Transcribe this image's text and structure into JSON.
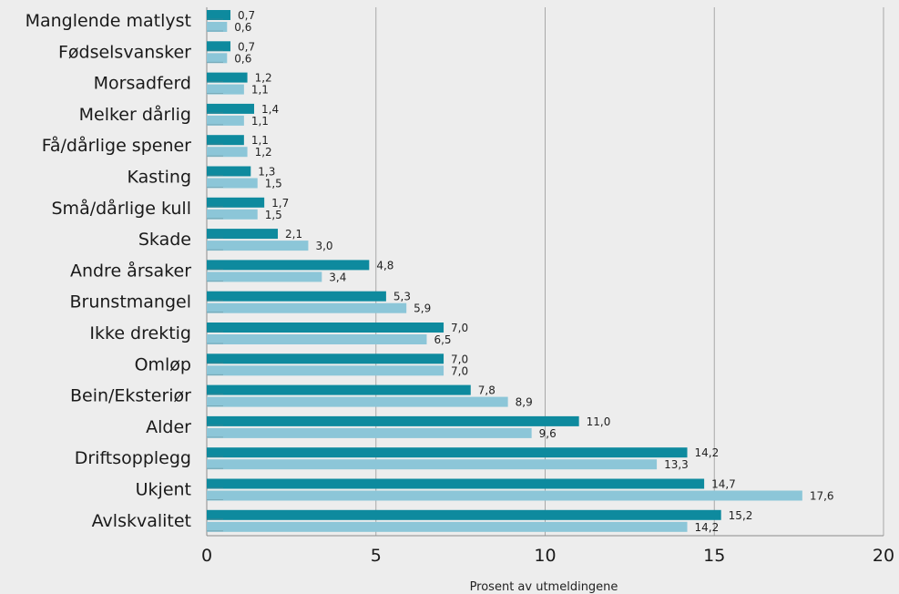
{
  "colors": {
    "background": "#ededed",
    "series_dark": "#0e8a9e",
    "series_light": "#8cc6d8",
    "gridline": "#a8a8a8"
  },
  "chart_data": {
    "type": "bar",
    "orientation": "horizontal",
    "title": "",
    "xlabel": "Prosent av utmeldingene",
    "ylabel": "",
    "xlim": [
      0,
      20
    ],
    "xticks": [
      "0",
      "5",
      "10",
      "15",
      "20"
    ],
    "grid": "vertical",
    "legend": "none",
    "categories": [
      "Manglende matlyst",
      "Fødselsvansker",
      "Morsadferd",
      "Melker dårlig",
      "Få/dårlige spener",
      "Kasting",
      "Små/dårlige kull",
      "Skade",
      "Andre årsaker",
      "Brunstmangel",
      "Ikke drektig",
      "Omløp",
      "Bein/Eksteriør",
      "Alder",
      "Driftsopplegg",
      "Ukjent",
      "Avlskvalitet"
    ],
    "series": [
      {
        "color": "#0e8a9e",
        "values": [
          0.7,
          0.7,
          1.2,
          1.4,
          1.1,
          1.3,
          1.7,
          2.1,
          4.8,
          5.3,
          7.0,
          7.0,
          7.8,
          11.0,
          14.2,
          14.7,
          15.2
        ],
        "labels": [
          "0,7",
          "0,7",
          "1,2",
          "1,4",
          "1,1",
          "1,3",
          "1,7",
          "2,1",
          "4,8",
          "5,3",
          "7,0",
          "7,0",
          "7,8",
          "11,0",
          "14,2",
          "14,7",
          "15,2"
        ]
      },
      {
        "color": "#8cc6d8",
        "values": [
          0.6,
          0.6,
          1.1,
          1.1,
          1.2,
          1.5,
          1.5,
          3.0,
          3.4,
          5.9,
          6.5,
          7.0,
          8.9,
          9.6,
          13.3,
          17.6,
          14.2
        ],
        "labels": [
          "0,6",
          "0,6",
          "1,1",
          "1,1",
          "1,2",
          "1,5",
          "1,5",
          "3,0",
          "3,4",
          "5,9",
          "6,5",
          "7,0",
          "8,9",
          "9,6",
          "13,3",
          "17,6",
          "14,2"
        ]
      }
    ]
  }
}
